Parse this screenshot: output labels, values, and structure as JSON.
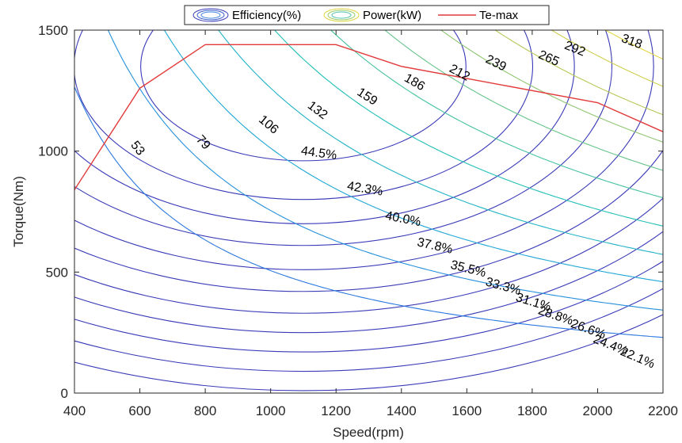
{
  "chart_data": {
    "type": "contour",
    "xlabel": "Speed(rpm)",
    "ylabel": "Torque(Nm)",
    "xlim": [
      400,
      2200
    ],
    "ylim": [
      0,
      1500
    ],
    "xticks": [
      400,
      600,
      800,
      1000,
      1200,
      1400,
      1600,
      1800,
      2000,
      2200
    ],
    "yticks": [
      0,
      500,
      1000,
      1500
    ],
    "legend": {
      "position": "top-center",
      "entries": [
        {
          "label": "Efficiency(%)",
          "style": "ellipse",
          "color": "#3a3ab8"
        },
        {
          "label": "Power(kW)",
          "style": "ellipse",
          "color": "#d8d850"
        },
        {
          "label": "Te-max",
          "style": "line",
          "color": "#e23a3a"
        }
      ]
    },
    "efficiency_contours": {
      "name": "Efficiency(%)",
      "center_speed": 1100,
      "center_torque": 1350,
      "levels": [
        {
          "label": "44.5%",
          "torque_at_center": 960
        },
        {
          "label": "42.3%",
          "torque_at_center": 800
        },
        {
          "label": "40.0%",
          "torque_at_center": 700
        },
        {
          "label": "37.8%",
          "torque_at_center": 610
        },
        {
          "label": "35.5%",
          "torque_at_center": 510
        },
        {
          "label": "33.3%",
          "torque_at_center": 420
        },
        {
          "label": "31.1%",
          "torque_at_center": 330
        },
        {
          "label": "28.8%",
          "torque_at_center": 250
        },
        {
          "label": "26.6%",
          "torque_at_center": 170
        },
        {
          "label": "24.4%",
          "torque_at_center": 90
        },
        {
          "label": "22.1%",
          "torque_at_center": 10
        }
      ]
    },
    "power_contours": {
      "name": "Power(kW)",
      "levels": [
        53,
        79,
        106,
        132,
        159,
        186,
        212,
        239,
        265,
        292,
        318
      ]
    },
    "te_max": {
      "name": "Te-max",
      "speed": [
        400,
        600,
        800,
        1200,
        1400,
        2000,
        2200
      ],
      "torque": [
        840,
        1260,
        1440,
        1440,
        1350,
        1200,
        1080
      ]
    }
  }
}
